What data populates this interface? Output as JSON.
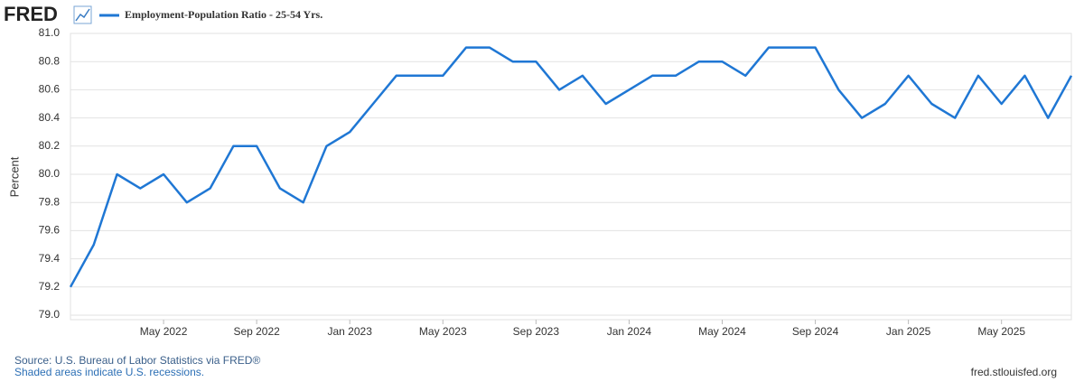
{
  "chart_data": {
    "type": "line",
    "brand": "FRED",
    "ylabel": "Percent",
    "source": "Source: U.S. Bureau of Labor Statistics via FRED®",
    "note": "Shaded areas indicate U.S. recessions.",
    "site": "fred.stlouisfed.org",
    "x": [
      "2022-01",
      "2022-02",
      "2022-03",
      "2022-04",
      "2022-05",
      "2022-06",
      "2022-07",
      "2022-08",
      "2022-09",
      "2022-10",
      "2022-11",
      "2022-12",
      "2023-01",
      "2023-02",
      "2023-03",
      "2023-04",
      "2023-05",
      "2023-06",
      "2023-07",
      "2023-08",
      "2023-09",
      "2023-10",
      "2023-11",
      "2023-12",
      "2024-01",
      "2024-02",
      "2024-03",
      "2024-04",
      "2024-05",
      "2024-06",
      "2024-07",
      "2024-08",
      "2024-09",
      "2024-10",
      "2024-11",
      "2024-12",
      "2025-01",
      "2025-02",
      "2025-03",
      "2025-04",
      "2025-05",
      "2025-06",
      "2025-07",
      "2025-08"
    ],
    "series": [
      {
        "name": "Employment-Population Ratio - 25-54 Yrs.",
        "color": "#1f77d4",
        "values": [
          79.2,
          79.5,
          80.0,
          79.9,
          80.0,
          79.8,
          79.9,
          80.2,
          80.2,
          79.9,
          79.8,
          80.2,
          80.3,
          80.5,
          80.7,
          80.7,
          80.7,
          80.9,
          80.9,
          80.8,
          80.8,
          80.6,
          80.7,
          80.5,
          80.6,
          80.7,
          80.7,
          80.8,
          80.8,
          80.7,
          80.9,
          80.9,
          80.9,
          80.6,
          80.4,
          80.5,
          80.7,
          80.5,
          80.4,
          80.7,
          80.5,
          80.7,
          80.4,
          80.7
        ]
      }
    ],
    "xlim": [
      "2022-01",
      "2025-08"
    ],
    "xticks": [
      {
        "value": "2022-05",
        "label": "May 2022"
      },
      {
        "value": "2022-09",
        "label": "Sep 2022"
      },
      {
        "value": "2023-01",
        "label": "Jan 2023"
      },
      {
        "value": "2023-05",
        "label": "May 2023"
      },
      {
        "value": "2023-09",
        "label": "Sep 2023"
      },
      {
        "value": "2024-01",
        "label": "Jan 2024"
      },
      {
        "value": "2024-05",
        "label": "May 2024"
      },
      {
        "value": "2024-09",
        "label": "Sep 2024"
      },
      {
        "value": "2025-01",
        "label": "Jan 2025"
      },
      {
        "value": "2025-05",
        "label": "May 2025"
      }
    ],
    "ylim": [
      79.0,
      81.0
    ],
    "yticks": [
      {
        "value": 79.0,
        "label": "79.0"
      },
      79.2,
      79.4,
      79.6,
      79.8,
      {
        "value": 80.0,
        "label": "80.0"
      },
      80.2,
      80.4,
      80.6,
      80.8,
      {
        "value": 81.0,
        "label": "81.0"
      }
    ],
    "grid": true
  }
}
